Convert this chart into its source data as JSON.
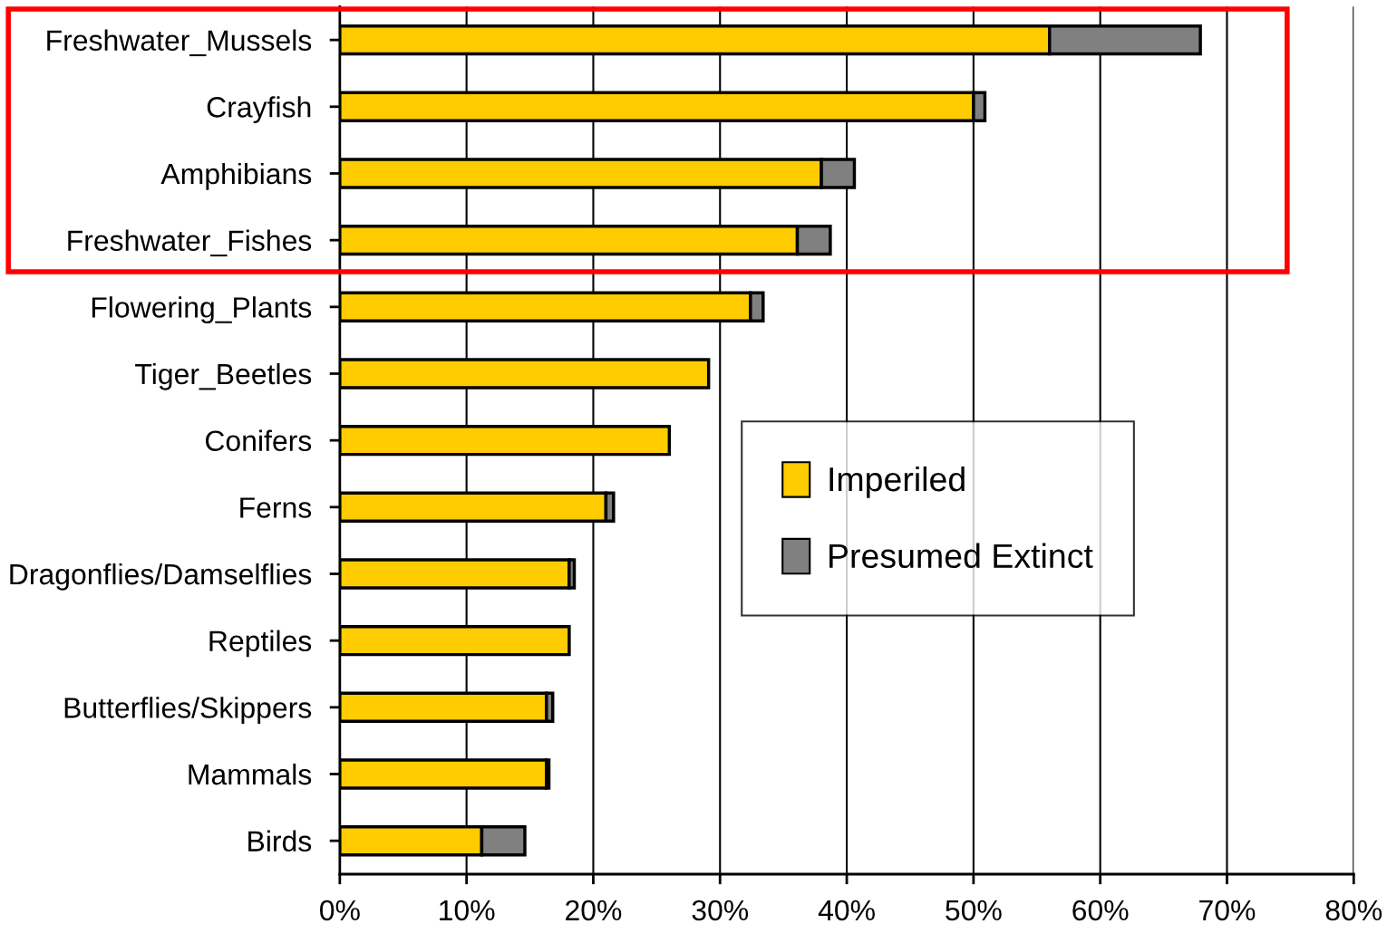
{
  "chart_data": {
    "type": "bar",
    "orientation": "horizontal",
    "stacked": true,
    "categories": [
      "Freshwater_Mussels",
      "Crayfish",
      "Amphibians",
      "Freshwater_Fishes",
      "Flowering_Plants",
      "Tiger_Beetles",
      "Conifers",
      "Ferns",
      "Dragonflies/Damselflies",
      "Reptiles",
      "Butterflies/Skippers",
      "Mammals",
      "Birds"
    ],
    "series": [
      {
        "name": "Imperiled",
        "color": "#ffcc00",
        "values": [
          56,
          50,
          38,
          36.1,
          32.4,
          29.1,
          26,
          21,
          18.1,
          18.1,
          16.3,
          16.3,
          11.2
        ]
      },
      {
        "name": "Presumed Extinct",
        "color": "#808080",
        "values": [
          11.9,
          0.9,
          2.6,
          2.6,
          1,
          0,
          0,
          0.6,
          0.4,
          0,
          0.5,
          0.2,
          3.4
        ]
      }
    ],
    "xlim": [
      0,
      80
    ],
    "xticks": [
      {
        "value": 0,
        "label": "0%"
      },
      {
        "value": 10,
        "label": "10%"
      },
      {
        "value": 20,
        "label": "20%"
      },
      {
        "value": 30,
        "label": "30%"
      },
      {
        "value": 40,
        "label": "40%"
      },
      {
        "value": 50,
        "label": "50%"
      },
      {
        "value": 60,
        "label": "60%"
      },
      {
        "value": 70,
        "label": "70%"
      },
      {
        "value": 80,
        "label": "80%"
      }
    ],
    "grid": "x",
    "legend": "center right"
  }
}
